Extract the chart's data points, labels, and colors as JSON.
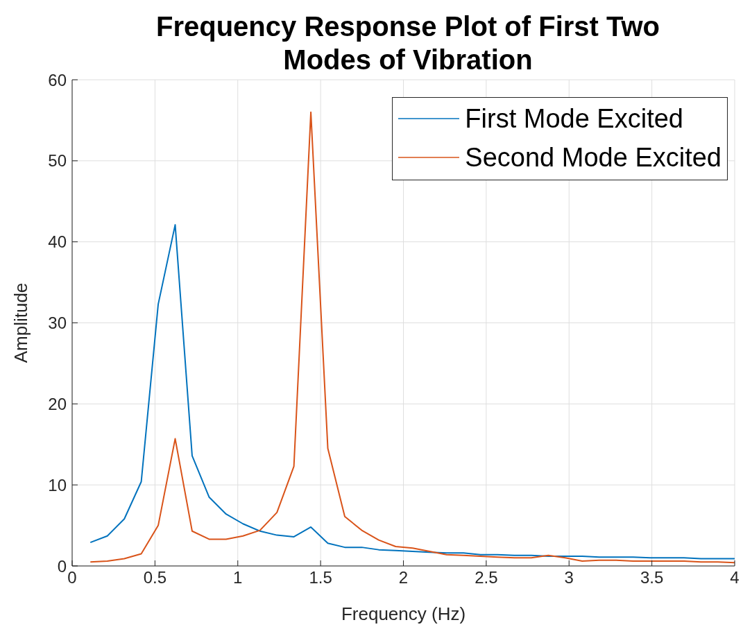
{
  "chart_data": {
    "type": "line",
    "title": "Frequency Response Plot of First Two Modes of Vibration",
    "xlabel": "Frequency (Hz)",
    "ylabel": "Amplitude",
    "x": [
      0.11,
      0.2124,
      0.3148,
      0.4172,
      0.5196,
      0.622,
      0.7244,
      0.8268,
      0.9292,
      1.0316,
      1.134,
      1.2364,
      1.3388,
      1.4412,
      1.5436,
      1.646,
      1.7484,
      1.8508,
      1.9532,
      2.0556,
      2.158,
      2.2604,
      2.3628,
      2.4652,
      2.5676,
      2.67,
      2.7724,
      2.8748,
      2.9772,
      3.0796,
      3.182,
      3.2844,
      3.3868,
      3.4892,
      3.5916,
      3.694,
      3.7964,
      3.8988,
      4.0
    ],
    "series": [
      {
        "name": "First Mode Excited",
        "color": "#0072bd",
        "values": [
          2.9,
          3.7,
          5.8,
          10.4,
          32.3,
          42.1,
          13.6,
          8.5,
          6.4,
          5.2,
          4.3,
          3.8,
          3.6,
          4.8,
          2.8,
          2.3,
          2.3,
          2.0,
          1.9,
          1.8,
          1.7,
          1.6,
          1.6,
          1.4,
          1.4,
          1.3,
          1.3,
          1.2,
          1.2,
          1.2,
          1.1,
          1.1,
          1.1,
          1.0,
          1.0,
          1.0,
          0.9,
          0.9,
          0.9
        ]
      },
      {
        "name": "Second Mode Excited",
        "color": "#d95319",
        "values": [
          0.5,
          0.6,
          0.9,
          1.5,
          5.0,
          15.7,
          4.3,
          3.3,
          3.3,
          3.7,
          4.4,
          6.6,
          12.3,
          56.0,
          14.5,
          6.1,
          4.4,
          3.2,
          2.4,
          2.2,
          1.8,
          1.4,
          1.3,
          1.2,
          1.1,
          1.0,
          1.0,
          1.3,
          1.0,
          0.6,
          0.7,
          0.7,
          0.6,
          0.6,
          0.6,
          0.6,
          0.5,
          0.5,
          0.4
        ]
      }
    ],
    "xlim": [
      0,
      4
    ],
    "xticks": [
      0,
      0.5,
      1,
      1.5,
      2,
      2.5,
      3,
      3.5,
      4
    ],
    "ylim": [
      0,
      60
    ],
    "yticks": [
      0,
      10,
      20,
      30,
      40,
      50,
      60
    ],
    "grid": true,
    "legend": "top right",
    "marker": "none",
    "line_style": "solid"
  }
}
